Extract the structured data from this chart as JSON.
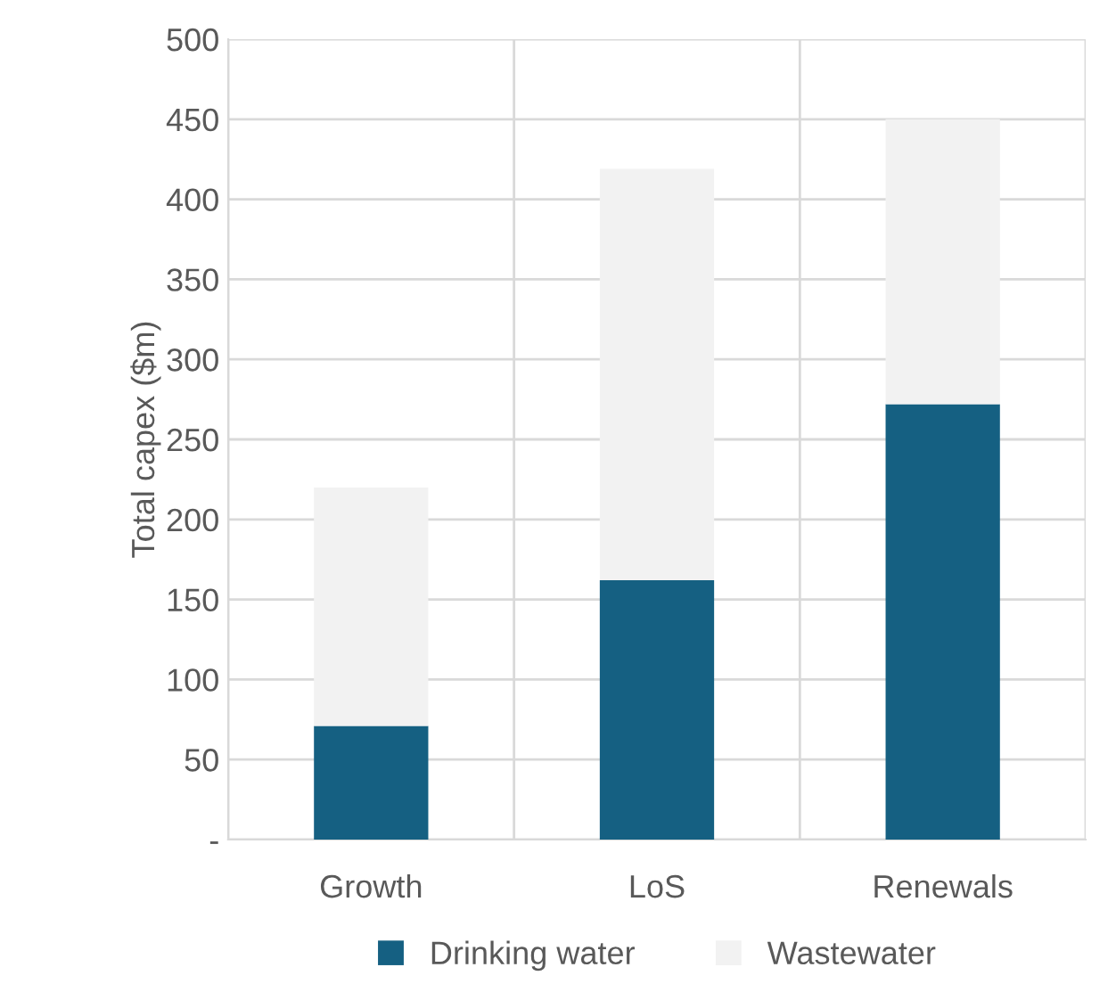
{
  "chart_data": {
    "type": "bar",
    "stacked": true,
    "ylabel": "Total capex ($m)",
    "categories": [
      "Growth",
      "LoS",
      "Renewals"
    ],
    "series": [
      {
        "name": "Drinking water",
        "color": "#156082",
        "values": [
          71,
          162,
          272
        ]
      },
      {
        "name": "Wastewater",
        "color": "#f2f2f2",
        "values": [
          149,
          257,
          178
        ]
      }
    ],
    "ylim": [
      0,
      500
    ],
    "yticks": [
      {
        "value": 0,
        "label": "-"
      },
      50,
      100,
      150,
      200,
      250,
      300,
      350,
      400,
      450,
      500
    ],
    "grid": true,
    "legend": "bottom"
  }
}
